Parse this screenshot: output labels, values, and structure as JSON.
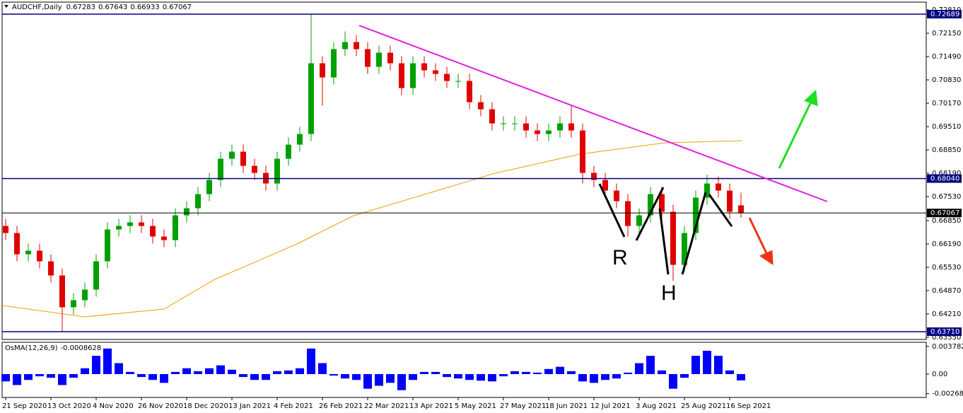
{
  "chart_data": [
    {
      "type": "candlestick",
      "title": "AUDCHF,Daily",
      "open": [
        0.667,
        0.665,
        0.659,
        0.66,
        0.657,
        0.653,
        0.644,
        0.646,
        0.649,
        0.657,
        0.666,
        0.667,
        0.668,
        0.667,
        0.664,
        0.663,
        0.67,
        0.672,
        0.676,
        0.68,
        0.686,
        0.688,
        0.684,
        0.682,
        0.679,
        0.686,
        0.69,
        0.693,
        0.713,
        0.709,
        0.717,
        0.719,
        0.717,
        0.712,
        0.716,
        0.713,
        0.706,
        0.713,
        0.711,
        0.71,
        0.708,
        0.708,
        0.702,
        0.7,
        0.696,
        0.696,
        0.696,
        0.694,
        0.693,
        0.694,
        0.696,
        0.694,
        0.682,
        0.68,
        0.677,
        0.674,
        0.667,
        0.67,
        0.676,
        0.671,
        0.656,
        0.665,
        0.675,
        0.679,
        0.677,
        0.67283
      ],
      "high": [
        0.669,
        0.667,
        0.662,
        0.662,
        0.659,
        0.655,
        0.648,
        0.651,
        0.659,
        0.668,
        0.669,
        0.67,
        0.67,
        0.669,
        0.666,
        0.672,
        0.674,
        0.678,
        0.682,
        0.688,
        0.69,
        0.69,
        0.686,
        0.684,
        0.688,
        0.692,
        0.695,
        0.7268,
        0.715,
        0.719,
        0.722,
        0.721,
        0.719,
        0.718,
        0.718,
        0.715,
        0.715,
        0.715,
        0.713,
        0.712,
        0.71,
        0.71,
        0.704,
        0.702,
        0.698,
        0.698,
        0.698,
        0.696,
        0.696,
        0.698,
        0.701,
        0.696,
        0.684,
        0.682,
        0.679,
        0.676,
        0.672,
        0.678,
        0.678,
        0.673,
        0.667,
        0.677,
        0.6815,
        0.681,
        0.679,
        0.67643
      ],
      "low": [
        0.663,
        0.657,
        0.657,
        0.655,
        0.651,
        0.6371,
        0.642,
        0.644,
        0.647,
        0.655,
        0.664,
        0.665,
        0.665,
        0.662,
        0.661,
        0.661,
        0.668,
        0.67,
        0.674,
        0.678,
        0.684,
        0.682,
        0.68,
        0.677,
        0.677,
        0.684,
        0.688,
        0.691,
        0.701,
        0.707,
        0.715,
        0.715,
        0.71,
        0.71,
        0.711,
        0.704,
        0.704,
        0.709,
        0.708,
        0.706,
        0.706,
        0.7,
        0.698,
        0.694,
        0.694,
        0.694,
        0.692,
        0.691,
        0.691,
        0.692,
        0.692,
        0.679,
        0.678,
        0.675,
        0.672,
        0.664,
        0.665,
        0.668,
        0.669,
        0.6515,
        0.654,
        0.663,
        0.673,
        0.675,
        0.669,
        0.66933
      ],
      "close": [
        0.665,
        0.659,
        0.66,
        0.657,
        0.653,
        0.644,
        0.646,
        0.649,
        0.657,
        0.666,
        0.667,
        0.668,
        0.667,
        0.664,
        0.663,
        0.67,
        0.672,
        0.676,
        0.68,
        0.686,
        0.688,
        0.684,
        0.682,
        0.679,
        0.686,
        0.69,
        0.693,
        0.713,
        0.709,
        0.717,
        0.719,
        0.717,
        0.712,
        0.716,
        0.713,
        0.706,
        0.713,
        0.711,
        0.71,
        0.708,
        0.708,
        0.702,
        0.7,
        0.696,
        0.696,
        0.696,
        0.694,
        0.693,
        0.694,
        0.696,
        0.694,
        0.682,
        0.68,
        0.677,
        0.674,
        0.667,
        0.67,
        0.676,
        0.671,
        0.656,
        0.665,
        0.675,
        0.679,
        0.677,
        0.671,
        0.67067
      ],
      "up_color": "#00a000",
      "down_color": "#e00000",
      "ylim": [
        0.6349,
        0.7303
      ],
      "yticks": [
        {
          "value": 0.7281,
          "label": "0.72810"
        },
        {
          "value": 0.7215,
          "label": "0.72150"
        },
        {
          "value": 0.7149,
          "label": "0.71490"
        },
        {
          "value": 0.7083,
          "label": "0.70830"
        },
        {
          "value": 0.7017,
          "label": "0.70170"
        },
        {
          "value": 0.6951,
          "label": "0.69510"
        },
        {
          "value": 0.6885,
          "label": "0.68850"
        },
        {
          "value": 0.6819,
          "label": "0.68190"
        },
        {
          "value": 0.6753,
          "label": "0.67530"
        },
        {
          "value": 0.6685,
          "label": "0.66850"
        },
        {
          "value": 0.6619,
          "label": "0.66190"
        },
        {
          "value": 0.6553,
          "label": "0.65530"
        },
        {
          "value": 0.6487,
          "label": "0.64870"
        },
        {
          "value": 0.6421,
          "label": "0.64210"
        },
        {
          "value": 0.6355,
          "label": "0.63550"
        }
      ],
      "xticks": [
        {
          "value": 0,
          "label": "21 Sep 2020"
        },
        {
          "value": 4,
          "label": "13 Oct 2020"
        },
        {
          "value": 8,
          "label": "4 Nov 2020"
        },
        {
          "value": 12,
          "label": "26 Nov 2020"
        },
        {
          "value": 16,
          "label": "18 Dec 2020"
        },
        {
          "value": 20,
          "label": "13 Jan 2021"
        },
        {
          "value": 24,
          "label": "4 Feb 2021"
        },
        {
          "value": 28,
          "label": "26 Feb 2021"
        },
        {
          "value": 32,
          "label": "22 Mar 2021"
        },
        {
          "value": 36,
          "label": "13 Apr 2021"
        },
        {
          "value": 40,
          "label": "5 May 2021"
        },
        {
          "value": 44,
          "label": "27 May 2021"
        },
        {
          "value": 48,
          "label": "18 Jun 2021"
        },
        {
          "value": 52,
          "label": "12 Jul 2021"
        },
        {
          "value": 56,
          "label": "3 Aug 2021"
        },
        {
          "value": 60,
          "label": "25 Aug 2021"
        },
        {
          "value": 64,
          "label": "16 Sep 2021"
        }
      ],
      "levels": [
        {
          "value": 0.72689,
          "color": "#000080"
        },
        {
          "value": 0.6804,
          "label": "0.68040",
          "color": "#000080"
        },
        {
          "value": 0.6371,
          "label": "0.63710",
          "color": "#000080"
        }
      ],
      "current_color": "#000000",
      "ma": {
        "color": "#f0a000",
        "x": [
          -0.3,
          7,
          14,
          18.5,
          25.75,
          30.75,
          37,
          43.25,
          50.75,
          58.25,
          65.1
        ],
        "values": [
          0.6445,
          0.6413,
          0.6435,
          0.6519,
          0.6619,
          0.6699,
          0.6759,
          0.6819,
          0.6873,
          0.6905,
          0.6911
        ]
      },
      "annotations": [
        "R",
        "H"
      ]
    },
    {
      "type": "bar",
      "title": "OsMA(12,26,9)",
      "color": "#0000ff",
      "values": [
        -0.001,
        -0.0015,
        -0.0008,
        -0.0003,
        -0.0005,
        -0.0015,
        -0.0005,
        0.0008,
        0.0025,
        0.0035,
        0.0015,
        0.0003,
        -0.0004,
        -0.0008,
        -0.0012,
        0.0003,
        0.0008,
        0.0004,
        0.0008,
        0.0012,
        0.0006,
        -0.0004,
        -0.0008,
        -0.0008,
        0.0004,
        0.0005,
        0.0008,
        0.0035,
        0.0015,
        -0.0002,
        -0.0006,
        -0.0008,
        -0.002,
        -0.0016,
        -0.0012,
        -0.0022,
        -0.0008,
        0.0003,
        0.0003,
        -0.0004,
        -0.0006,
        -0.0008,
        -0.0009,
        -0.001,
        -0.0003,
        0.0004,
        0.0003,
        0.0002,
        0.0007,
        0.001,
        0.0004,
        -0.001,
        -0.0012,
        -0.0008,
        -0.0006,
        0.0002,
        0.0015,
        0.0025,
        0.0005,
        -0.002,
        -0.0005,
        0.0025,
        0.0032,
        0.0025,
        0.0005,
        -0.0008628
      ],
      "ylim": [
        -0.0032,
        0.00436
      ],
      "yticks": [
        0.0037823,
        {
          "value": 0,
          "label": "0.00"
        },
        -0.002682
      ]
    }
  ]
}
